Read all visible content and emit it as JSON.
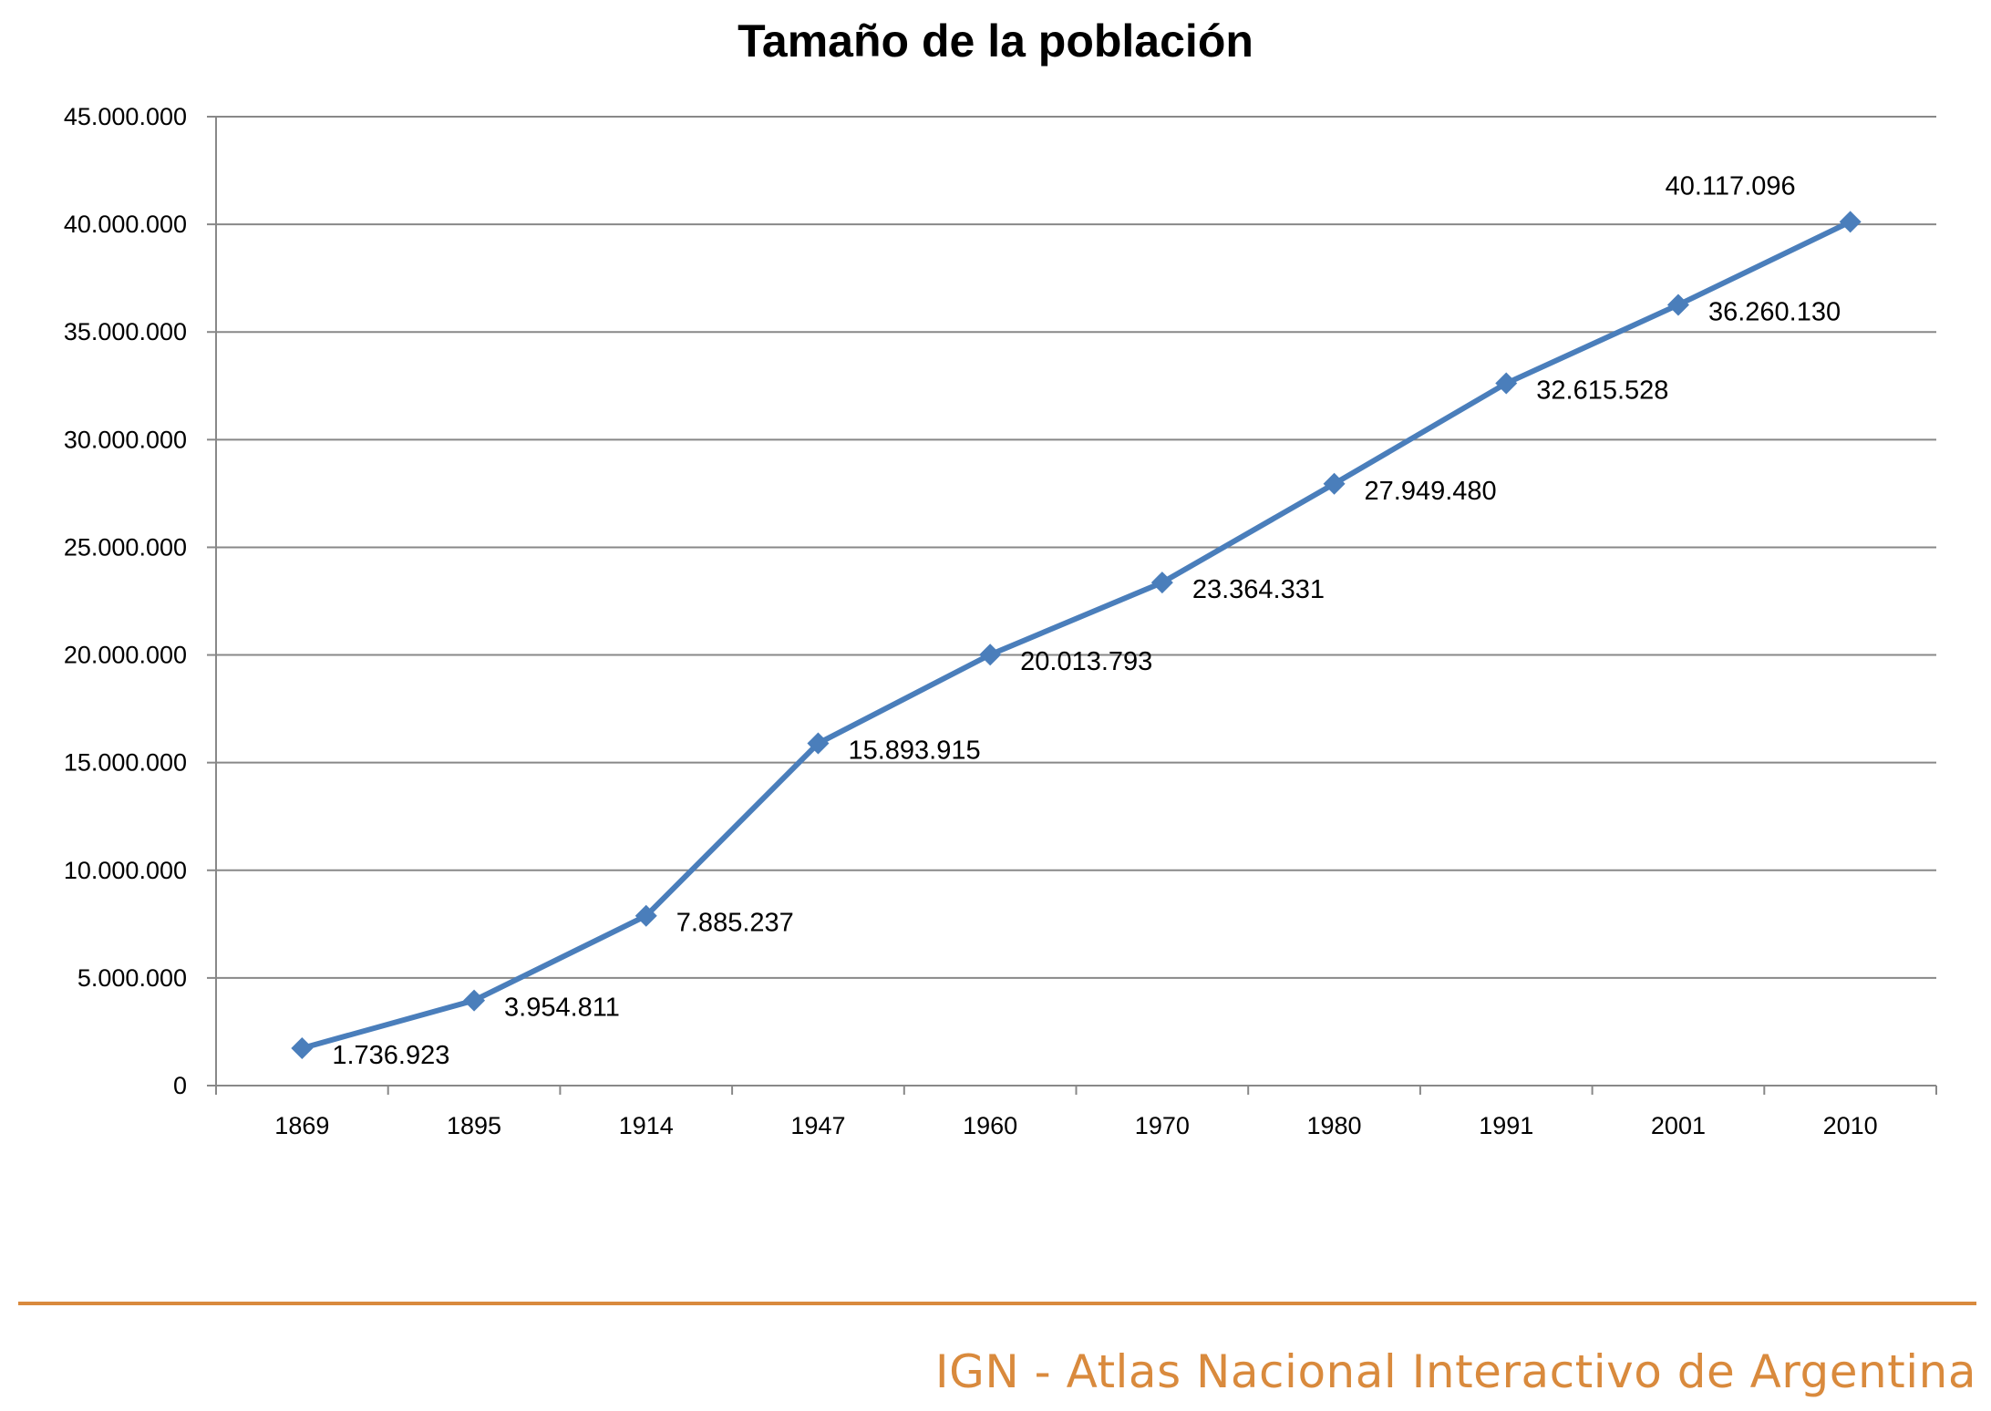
{
  "chart_data": {
    "type": "line",
    "title": "Tamaño de la población",
    "xlabel": "",
    "ylabel": "",
    "categories": [
      "1869",
      "1895",
      "1914",
      "1947",
      "1960",
      "1970",
      "1980",
      "1991",
      "2001",
      "2010"
    ],
    "values": [
      1736923,
      3954811,
      7885237,
      15893915,
      20013793,
      23364331,
      27949480,
      32615528,
      36260130,
      40117096
    ],
    "data_labels": [
      "1.736.923",
      "3.954.811",
      "7.885.237",
      "15.893.915",
      "20.013.793",
      "23.364.331",
      "27.949.480",
      "32.615.528",
      "36.260.130",
      "40.117.096"
    ],
    "ylim": [
      0,
      45000000
    ],
    "yticks": [
      0,
      5000000,
      10000000,
      15000000,
      20000000,
      25000000,
      30000000,
      35000000,
      40000000,
      45000000
    ],
    "ytick_labels": [
      "0",
      "5.000.000",
      "10.000.000",
      "15.000.000",
      "20.000.000",
      "25.000.000",
      "30.000.000",
      "35.000.000",
      "40.000.000",
      "45.000.000"
    ],
    "grid": true,
    "legend": "none",
    "colors": {
      "line": "#4a7ebb",
      "grid": "#888888",
      "axis": "#888888"
    }
  },
  "footer": {
    "text": "IGN - Atlas Nacional Interactivo de Argentina",
    "color": "#d98a3d"
  }
}
